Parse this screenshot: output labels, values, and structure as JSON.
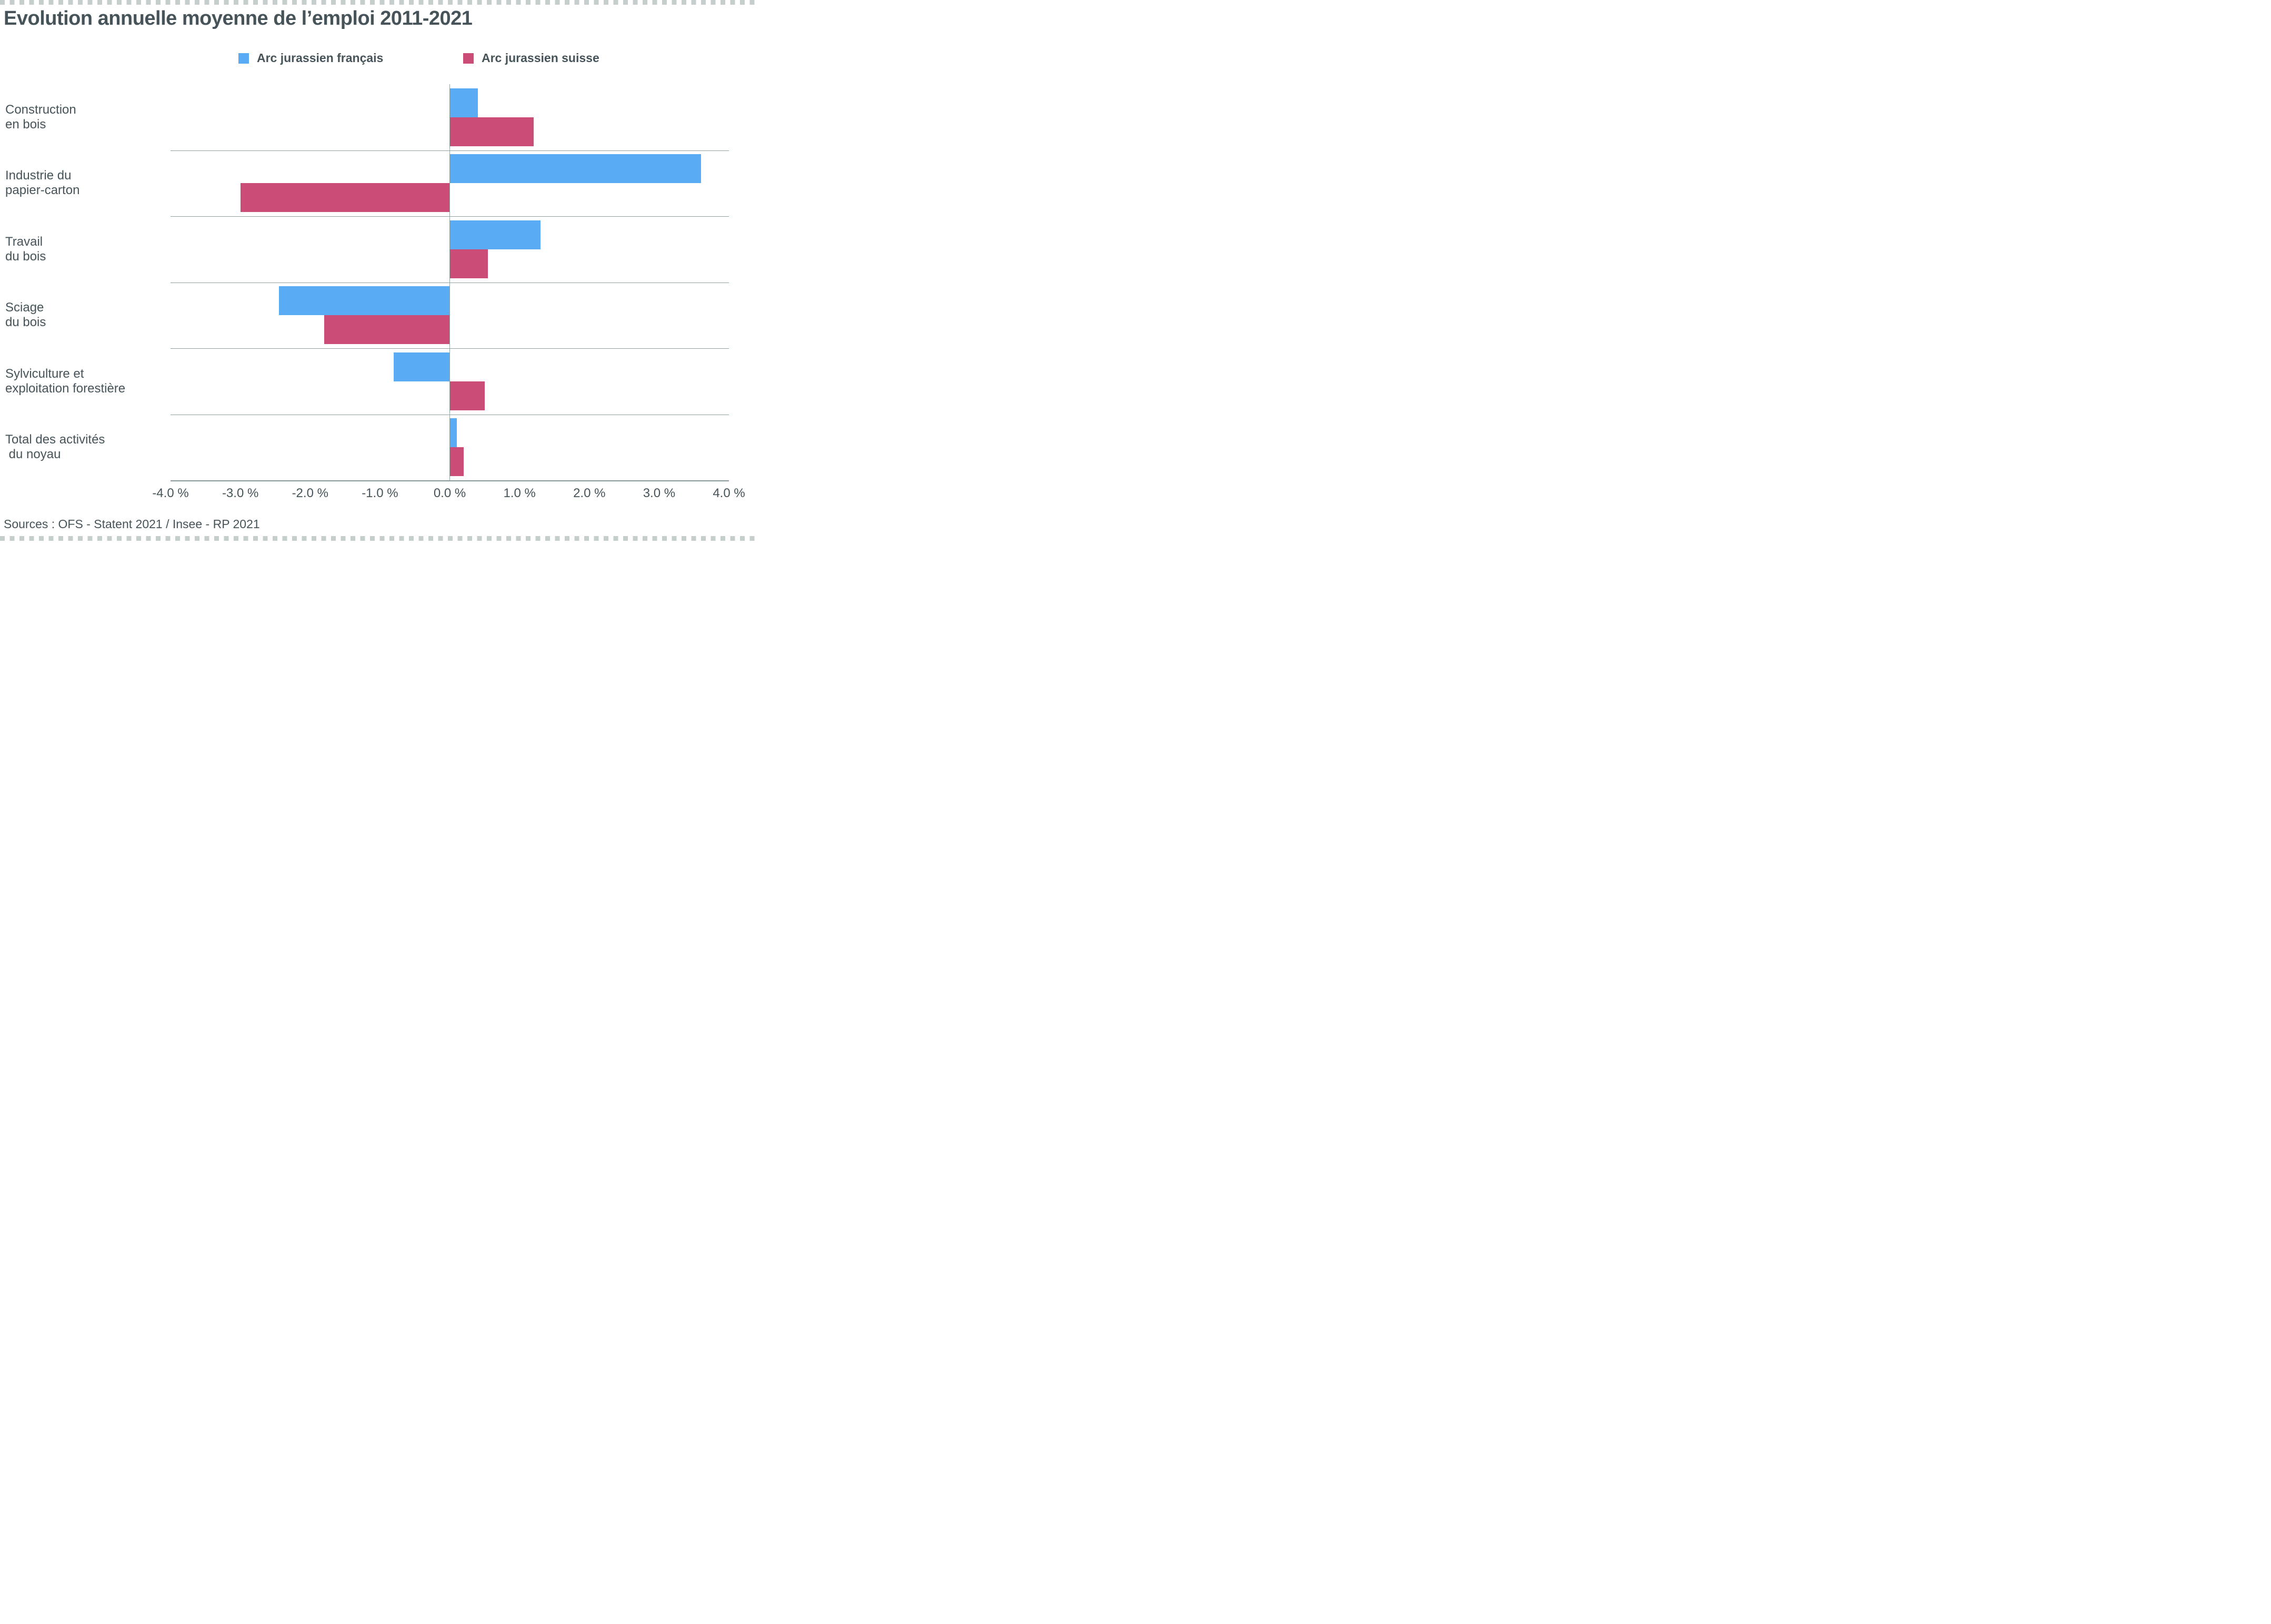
{
  "page": {
    "title": "Evolution annuelle moyenne de l’emploi 2011-2021",
    "source": "Sources : OFS - Statent 2021 / Insee - RP 2021"
  },
  "colors": {
    "background": "#ffffff",
    "text": "#46545a",
    "grid_line": "#8fa0a1",
    "axis_line": "#85979a",
    "border_dots": "#c5cecc",
    "series_francais": "#59abf3",
    "series_suisse": "#cc4c78"
  },
  "legend": {
    "items": [
      {
        "label": "Arc jurassien français",
        "color": "#59abf3"
      },
      {
        "label": "Arc jurassien suisse",
        "color": "#cc4c78"
      }
    ]
  },
  "chart_data": {
    "type": "bar",
    "orientation": "horizontal",
    "title": "Evolution annuelle moyenne de l’emploi 2011-2021",
    "unit": "%",
    "categories": [
      "Construction\nen bois",
      "Industrie du\npapier-carton",
      "Travail\ndu bois",
      "Sciage\ndu bois",
      "Sylviculture et\nexploitation forestière",
      "Total des activités\n du noyau"
    ],
    "series": [
      {
        "name": "Arc jurassien français",
        "color": "#59abf3",
        "values": [
          0.4,
          3.6,
          1.3,
          -2.45,
          -0.8,
          0.1
        ]
      },
      {
        "name": "Arc jurassien suisse",
        "color": "#cc4c78",
        "values": [
          1.2,
          -3.0,
          0.55,
          -1.8,
          0.5,
          0.2
        ]
      }
    ],
    "xlim": [
      -4.0,
      4.0
    ],
    "xtick_values": [
      -4,
      -3,
      -2,
      -1,
      0,
      1,
      2,
      3,
      4
    ],
    "xtick_labels": [
      "-4.0 %",
      "-3.0 %",
      "-2.0 %",
      "-1.0 %",
      "0.0 %",
      "1.0 %",
      "2.0 %",
      "3.0 %",
      "4.0 %"
    ],
    "grid": "horizontal-row-separators",
    "legend_position": "top-center"
  }
}
